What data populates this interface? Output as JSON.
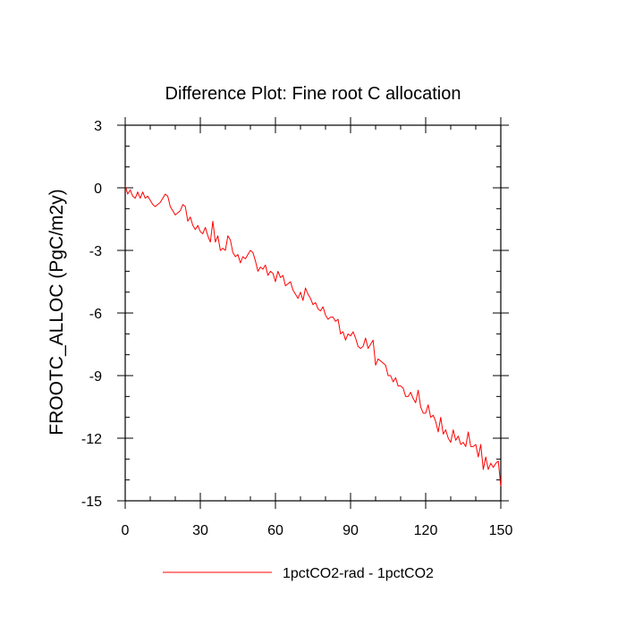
{
  "chart_data": {
    "type": "line",
    "title": "Difference Plot: Fine root C allocation",
    "xlabel": "",
    "ylabel": "FROOTC_ALLOC  (PgC/m2y)",
    "xlim": [
      0,
      150
    ],
    "ylim": [
      -15,
      3
    ],
    "x_ticks": [
      0,
      30,
      60,
      90,
      120,
      150
    ],
    "y_ticks": [
      3,
      0,
      -3,
      -6,
      -9,
      -12,
      -15
    ],
    "x_tick_labels": [
      "0",
      "30",
      "60",
      "90",
      "120",
      "150"
    ],
    "y_tick_labels": [
      "3",
      "0",
      "-3",
      "-6",
      "-9",
      "-12",
      "-15"
    ],
    "grid": false,
    "legend_position": "bottom-center",
    "series": [
      {
        "name": "1pctCO2-rad - 1pctCO2",
        "color": "#ff0000",
        "x": [
          0,
          1,
          2,
          3,
          4,
          5,
          6,
          7,
          8,
          9,
          10,
          11,
          12,
          13,
          14,
          15,
          16,
          17,
          18,
          19,
          20,
          21,
          22,
          23,
          24,
          25,
          26,
          27,
          28,
          29,
          30,
          31,
          32,
          33,
          34,
          35,
          36,
          37,
          38,
          39,
          40,
          41,
          42,
          43,
          44,
          45,
          46,
          47,
          48,
          49,
          50,
          51,
          52,
          53,
          54,
          55,
          56,
          57,
          58,
          59,
          60,
          61,
          62,
          63,
          64,
          65,
          66,
          67,
          68,
          69,
          70,
          71,
          72,
          73,
          74,
          75,
          76,
          77,
          78,
          79,
          80,
          81,
          82,
          83,
          84,
          85,
          86,
          87,
          88,
          89,
          90,
          91,
          92,
          93,
          94,
          95,
          96,
          97,
          98,
          99,
          100,
          101,
          102,
          103,
          104,
          105,
          106,
          107,
          108,
          109,
          110,
          111,
          112,
          113,
          114,
          115,
          116,
          117,
          118,
          119,
          120,
          121,
          122,
          123,
          124,
          125,
          126,
          127,
          128,
          129,
          130,
          131,
          132,
          133,
          134,
          135,
          136,
          137,
          138,
          139,
          140,
          141,
          142,
          143,
          144,
          145,
          146,
          147,
          148,
          149,
          150
        ],
        "y": [
          0.1,
          -0.3,
          -0.1,
          -0.4,
          -0.5,
          -0.2,
          -0.5,
          -0.2,
          -0.5,
          -0.4,
          -0.6,
          -0.8,
          -0.9,
          -0.8,
          -0.7,
          -0.5,
          -0.3,
          -0.4,
          -0.9,
          -1.1,
          -1.3,
          -1.2,
          -1.1,
          -0.8,
          -0.9,
          -1.6,
          -1.4,
          -1.8,
          -2.0,
          -1.8,
          -2.1,
          -2.2,
          -1.9,
          -2.3,
          -2.6,
          -1.6,
          -2.6,
          -2.3,
          -3.0,
          -2.9,
          -3.0,
          -2.3,
          -2.5,
          -3.1,
          -3.3,
          -3.2,
          -3.6,
          -3.3,
          -3.4,
          -3.2,
          -3.0,
          -3.1,
          -3.5,
          -4.0,
          -3.8,
          -3.9,
          -3.7,
          -4.2,
          -4.0,
          -4.1,
          -4.5,
          -4.0,
          -4.3,
          -4.2,
          -4.7,
          -4.6,
          -4.5,
          -4.9,
          -5.1,
          -5.3,
          -5.0,
          -5.4,
          -4.8,
          -5.1,
          -5.3,
          -5.6,
          -5.5,
          -5.8,
          -5.9,
          -5.7,
          -6.1,
          -6.3,
          -6.2,
          -6.2,
          -6.4,
          -6.3,
          -7.0,
          -6.9,
          -7.3,
          -7.0,
          -7.1,
          -6.9,
          -7.2,
          -7.6,
          -7.7,
          -7.6,
          -7.2,
          -7.7,
          -7.5,
          -7.3,
          -8.5,
          -8.2,
          -8.3,
          -8.4,
          -8.5,
          -9.0,
          -9.0,
          -9.3,
          -9.1,
          -9.5,
          -9.5,
          -9.6,
          -10.0,
          -10.0,
          -9.8,
          -10.1,
          -10.3,
          -9.7,
          -10.5,
          -10.8,
          -10.8,
          -10.4,
          -11.0,
          -10.9,
          -11.2,
          -11.7,
          -11.0,
          -11.8,
          -11.6,
          -12.0,
          -12.2,
          -11.6,
          -12.1,
          -11.9,
          -12.3,
          -12.2,
          -12.4,
          -11.7,
          -12.4,
          -12.4,
          -12.3,
          -12.9,
          -12.3,
          -13.5,
          -12.9,
          -13.5,
          -13.2,
          -13.4,
          -13.2,
          -13.1,
          -14.3
        ]
      }
    ]
  }
}
